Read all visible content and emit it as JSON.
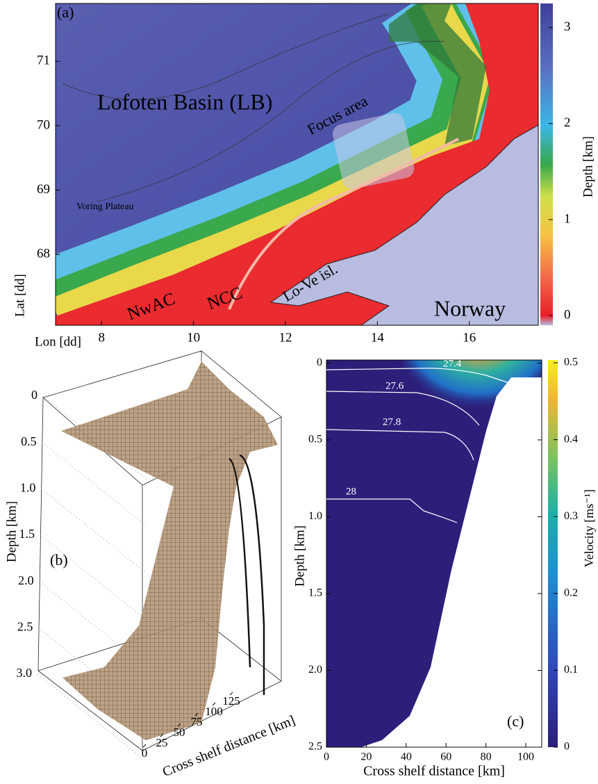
{
  "chart_data": [
    {
      "type": "map",
      "panel_label": "(a)",
      "xlabel": "Lon [dd]",
      "ylabel": "Lat [dd]",
      "xlim": [
        7,
        17.5
      ],
      "xticks": [
        8,
        10,
        12,
        14,
        16
      ],
      "ylim": [
        66.9,
        71.9
      ],
      "yticks": [
        68,
        69,
        70,
        71
      ],
      "colorbar": {
        "label": "Depth [km]",
        "lim": [
          -0.1,
          3.25
        ],
        "ticks": [
          0,
          1,
          2,
          3
        ]
      },
      "annotations": [
        "Lofoten Basin (LB)",
        "Focus area",
        "Voring Plateau",
        "NwAC",
        "NCC",
        "Lo-Ve isl.",
        "Norway"
      ]
    },
    {
      "type": "surface3d",
      "panel_label": "(b)",
      "zlabel": "Depth [km]",
      "xlabel": "Cross shelf distance [km]",
      "zlim": [
        0,
        3
      ],
      "zticks": [
        0,
        0.5,
        {
          "value": 1,
          "label": "1.0"
        },
        1.5,
        {
          "value": 2,
          "label": "2.0"
        },
        2.5,
        {
          "value": 3,
          "label": "3.0"
        }
      ],
      "xlim": [
        0,
        125
      ],
      "xticks": [
        0,
        25,
        50,
        75,
        100,
        125
      ]
    },
    {
      "type": "section",
      "panel_label": "(c)",
      "xlabel": "Cross shelf distance [km]",
      "ylabel": "Depth [km]",
      "xlim": [
        0,
        108
      ],
      "xticks": [
        0,
        20,
        40,
        60,
        80,
        100
      ],
      "ylim": [
        2.5,
        -0.02
      ],
      "yticks": [
        0,
        0.5,
        {
          "value": 1,
          "label": "1.0"
        },
        1.5,
        {
          "value": 2,
          "label": "2.0"
        },
        2.5
      ],
      "colorbar": {
        "label": "Velocity [ms⁻¹]",
        "lim": [
          0,
          0.5
        ],
        "ticks": [
          0,
          0.1,
          0.2,
          0.3,
          0.4,
          0.5
        ]
      },
      "contour_labels": [
        27.4,
        27.6,
        27.8,
        28
      ]
    }
  ]
}
